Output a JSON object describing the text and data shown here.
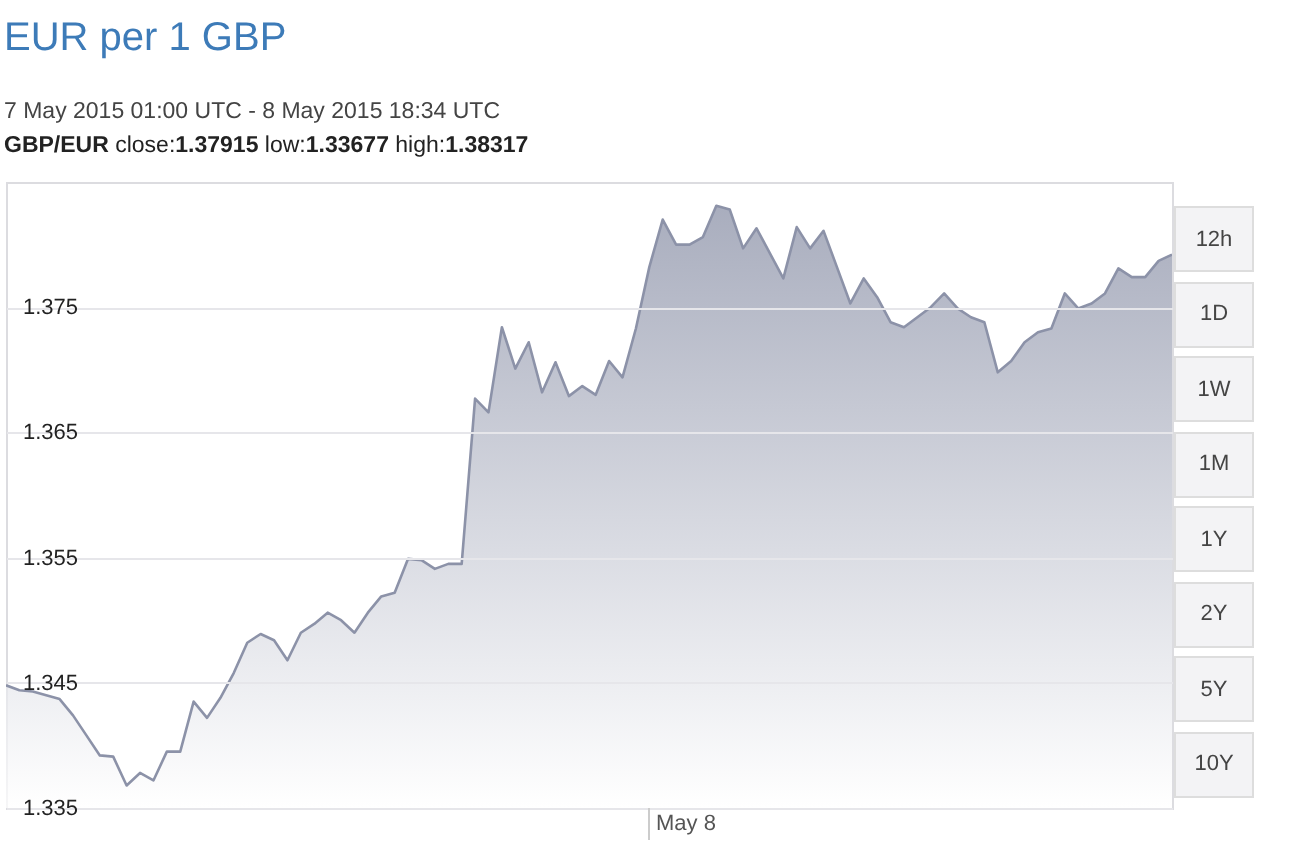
{
  "chart_data": {
    "type": "area",
    "title": "EUR per 1 GBP",
    "subtitle": "7 May 2015 01:00 UTC - 8 May 2015 18:34 UTC",
    "annotations": [
      "GBP/EUR close:1.37915 low:1.33677 high:1.38317",
      "May 8",
      "12h",
      "1D",
      "1W",
      "1M",
      "1Y",
      "2Y",
      "5Y",
      "10Y"
    ],
    "categories": [
      null,
      null,
      null,
      null,
      null,
      null,
      null,
      null,
      null,
      null,
      null,
      null,
      null,
      null,
      null,
      null,
      null,
      null,
      null,
      null,
      null,
      null,
      null,
      null,
      null,
      null,
      null,
      null,
      null,
      null,
      null,
      null,
      null,
      null,
      null,
      null,
      null,
      null,
      null,
      null,
      null,
      null,
      null,
      null,
      null,
      null,
      null,
      null,
      null,
      null,
      null,
      null,
      null,
      null,
      null,
      null,
      null,
      null,
      null,
      null,
      null,
      null,
      null,
      null,
      null,
      null,
      null,
      null,
      null,
      null,
      null,
      null,
      null,
      null,
      null,
      null,
      null,
      null,
      null,
      null,
      null,
      null,
      null,
      null,
      null,
      null,
      null,
      null
    ],
    "series": [
      {
        "color": "#8c92a8",
        "values": [
          1.3448,
          1.3444,
          1.3443,
          1.344,
          1.3437,
          1.3424,
          1.3408,
          1.3392,
          1.3391,
          1.3368,
          1.3378,
          1.3372,
          1.3395,
          1.3395,
          1.3435,
          1.3422,
          1.3438,
          1.3458,
          1.3482,
          1.3489,
          1.3484,
          1.3468,
          1.349,
          1.3497,
          1.3506,
          1.35,
          1.349,
          1.3506,
          1.3519,
          1.3522,
          1.3549,
          1.3548,
          1.3541,
          1.3545,
          1.3545,
          1.3677,
          1.3666,
          1.3734,
          1.3701,
          1.3722,
          1.3682,
          1.3706,
          1.3679,
          1.3687,
          1.368,
          1.3707,
          1.3694,
          1.3733,
          1.3782,
          1.382,
          1.38,
          1.38,
          1.3806,
          1.3831,
          1.3828,
          1.3797,
          1.3813,
          1.3793,
          1.3773,
          1.3814,
          1.3797,
          1.3811,
          1.3782,
          1.3753,
          1.3773,
          1.3758,
          1.3738,
          1.3734,
          1.3742,
          1.375,
          1.3761,
          1.3749,
          1.3742,
          1.3738,
          1.3698,
          1.3707,
          1.3722,
          1.373,
          1.3733,
          1.3761,
          1.3749,
          1.3753,
          1.3761,
          1.3781,
          1.3774,
          1.3774,
          1.3787,
          1.3792
        ]
      }
    ],
    "ylim": [
      1.335,
      1.385
    ],
    "yticks": [
      1.335,
      1.345,
      1.355,
      1.365,
      1.375
    ],
    "grid": "y"
  }
}
